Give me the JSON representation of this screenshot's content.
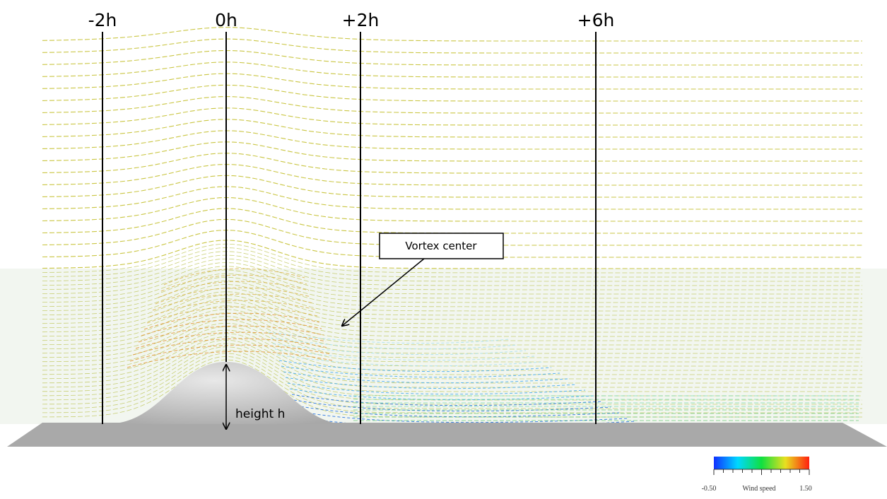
{
  "annotations": {
    "positions": [
      "-2h",
      "0h",
      "+2h",
      "+6h"
    ],
    "height_label": "height h",
    "callout": "Vortex center"
  },
  "colorbar": {
    "min_label": "-0.50",
    "title": "Wind speed",
    "max_label": "1.50"
  }
}
